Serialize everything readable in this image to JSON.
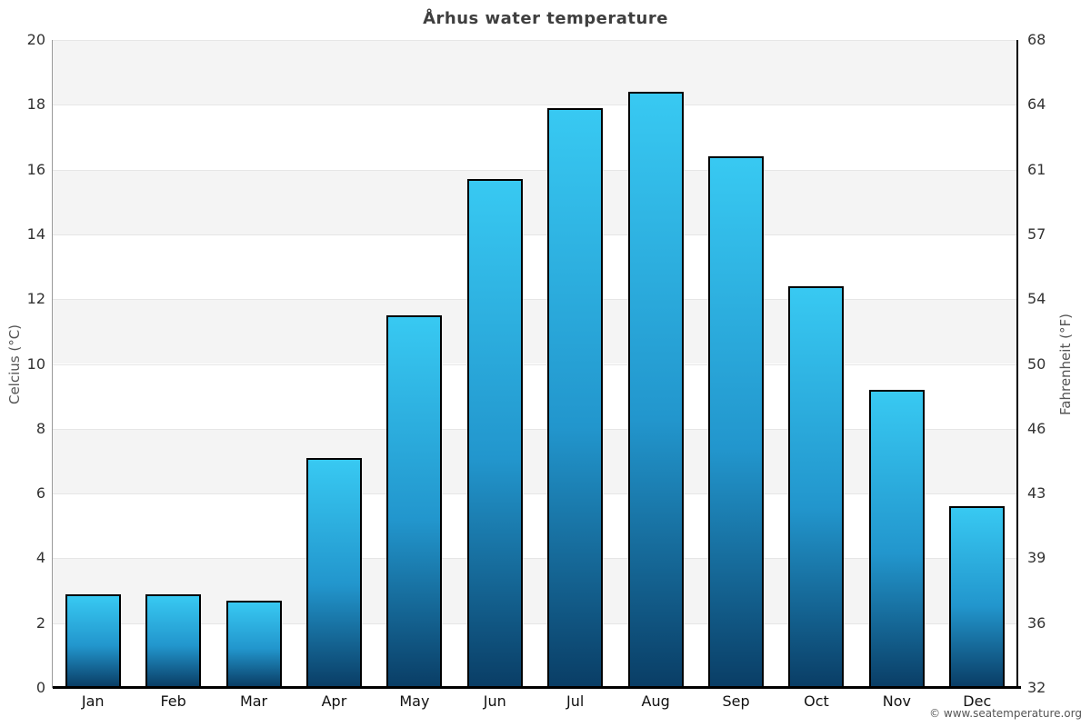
{
  "title": "Århus water temperature",
  "y_axis_left": {
    "title": "Celcius (°C)"
  },
  "y_axis_right": {
    "title": "Fahrenheit (°F)"
  },
  "footer": {
    "copyright": "© www.seatemperature.org"
  },
  "chart_data": {
    "type": "bar",
    "title": "Århus water temperature",
    "categories": [
      "Jan",
      "Feb",
      "Mar",
      "Apr",
      "May",
      "Jun",
      "Jul",
      "Aug",
      "Sep",
      "Oct",
      "Nov",
      "Dec"
    ],
    "values": [
      2.9,
      2.9,
      2.7,
      7.1,
      11.5,
      15.7,
      17.9,
      18.4,
      16.4,
      12.4,
      9.2,
      5.6
    ],
    "series_name": "Water temperature",
    "xlabel": "",
    "ylabel_left": "Celcius (°C)",
    "ylabel_right": "Fahrenheit (°F)",
    "ylim": [
      0,
      20
    ],
    "yticks_celsius": [
      0,
      2,
      4,
      6,
      8,
      10,
      12,
      14,
      16,
      18,
      20
    ],
    "yticks_fahrenheit": [
      32,
      36,
      39,
      43,
      46,
      50,
      54,
      57,
      61,
      64,
      68
    ],
    "grid": "horizontal, alternating bands every 2°C",
    "legend_position": "none",
    "colors": {
      "bar_gradient_top": "#38c9f2",
      "bar_gradient_bottom": "#0a3e66",
      "bar_border": "#000000",
      "band_gray": "#f4f4f4",
      "band_white": "#ffffff",
      "gridline": "#e6e6e6",
      "left_axis_line": "#9a9a9a",
      "right_axis_line": "#000000",
      "title_text": "#3f3f3f",
      "tick_text": "#333333",
      "axis_title_text": "#555555",
      "credit_text": "#555555"
    }
  }
}
